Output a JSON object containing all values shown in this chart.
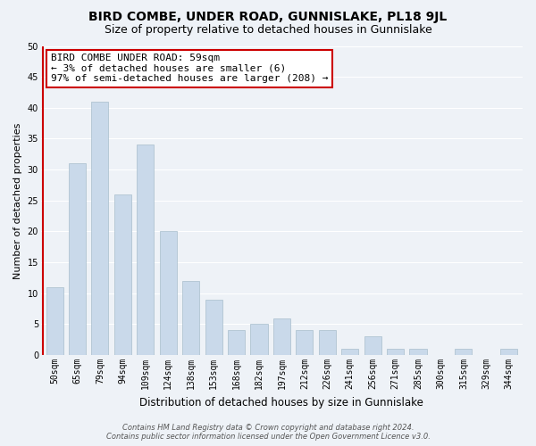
{
  "title": "BIRD COMBE, UNDER ROAD, GUNNISLAKE, PL18 9JL",
  "subtitle": "Size of property relative to detached houses in Gunnislake",
  "xlabel": "Distribution of detached houses by size in Gunnislake",
  "ylabel": "Number of detached properties",
  "categories": [
    "50sqm",
    "65sqm",
    "79sqm",
    "94sqm",
    "109sqm",
    "124sqm",
    "138sqm",
    "153sqm",
    "168sqm",
    "182sqm",
    "197sqm",
    "212sqm",
    "226sqm",
    "241sqm",
    "256sqm",
    "271sqm",
    "285sqm",
    "300sqm",
    "315sqm",
    "329sqm",
    "344sqm"
  ],
  "values": [
    11,
    31,
    41,
    26,
    34,
    20,
    12,
    9,
    4,
    5,
    6,
    4,
    4,
    1,
    3,
    1,
    1,
    0,
    1,
    0,
    1
  ],
  "bar_color": "#c9d9ea",
  "bar_edge_color": "#a8becc",
  "ylim": [
    0,
    50
  ],
  "yticks": [
    0,
    5,
    10,
    15,
    20,
    25,
    30,
    35,
    40,
    45,
    50
  ],
  "annotation_title": "BIRD COMBE UNDER ROAD: 59sqm",
  "annotation_line1": "← 3% of detached houses are smaller (6)",
  "annotation_line2": "97% of semi-detached houses are larger (208) →",
  "annotation_box_color": "#ffffff",
  "annotation_box_edge_color": "#cc0000",
  "red_line_color": "#cc0000",
  "footer_line1": "Contains HM Land Registry data © Crown copyright and database right 2024.",
  "footer_line2": "Contains public sector information licensed under the Open Government Licence v3.0.",
  "background_color": "#eef2f7",
  "grid_color": "#ffffff",
  "title_fontsize": 10,
  "subtitle_fontsize": 9,
  "xlabel_fontsize": 8.5,
  "ylabel_fontsize": 8,
  "tick_fontsize": 7,
  "annotation_fontsize": 8,
  "footer_fontsize": 6
}
